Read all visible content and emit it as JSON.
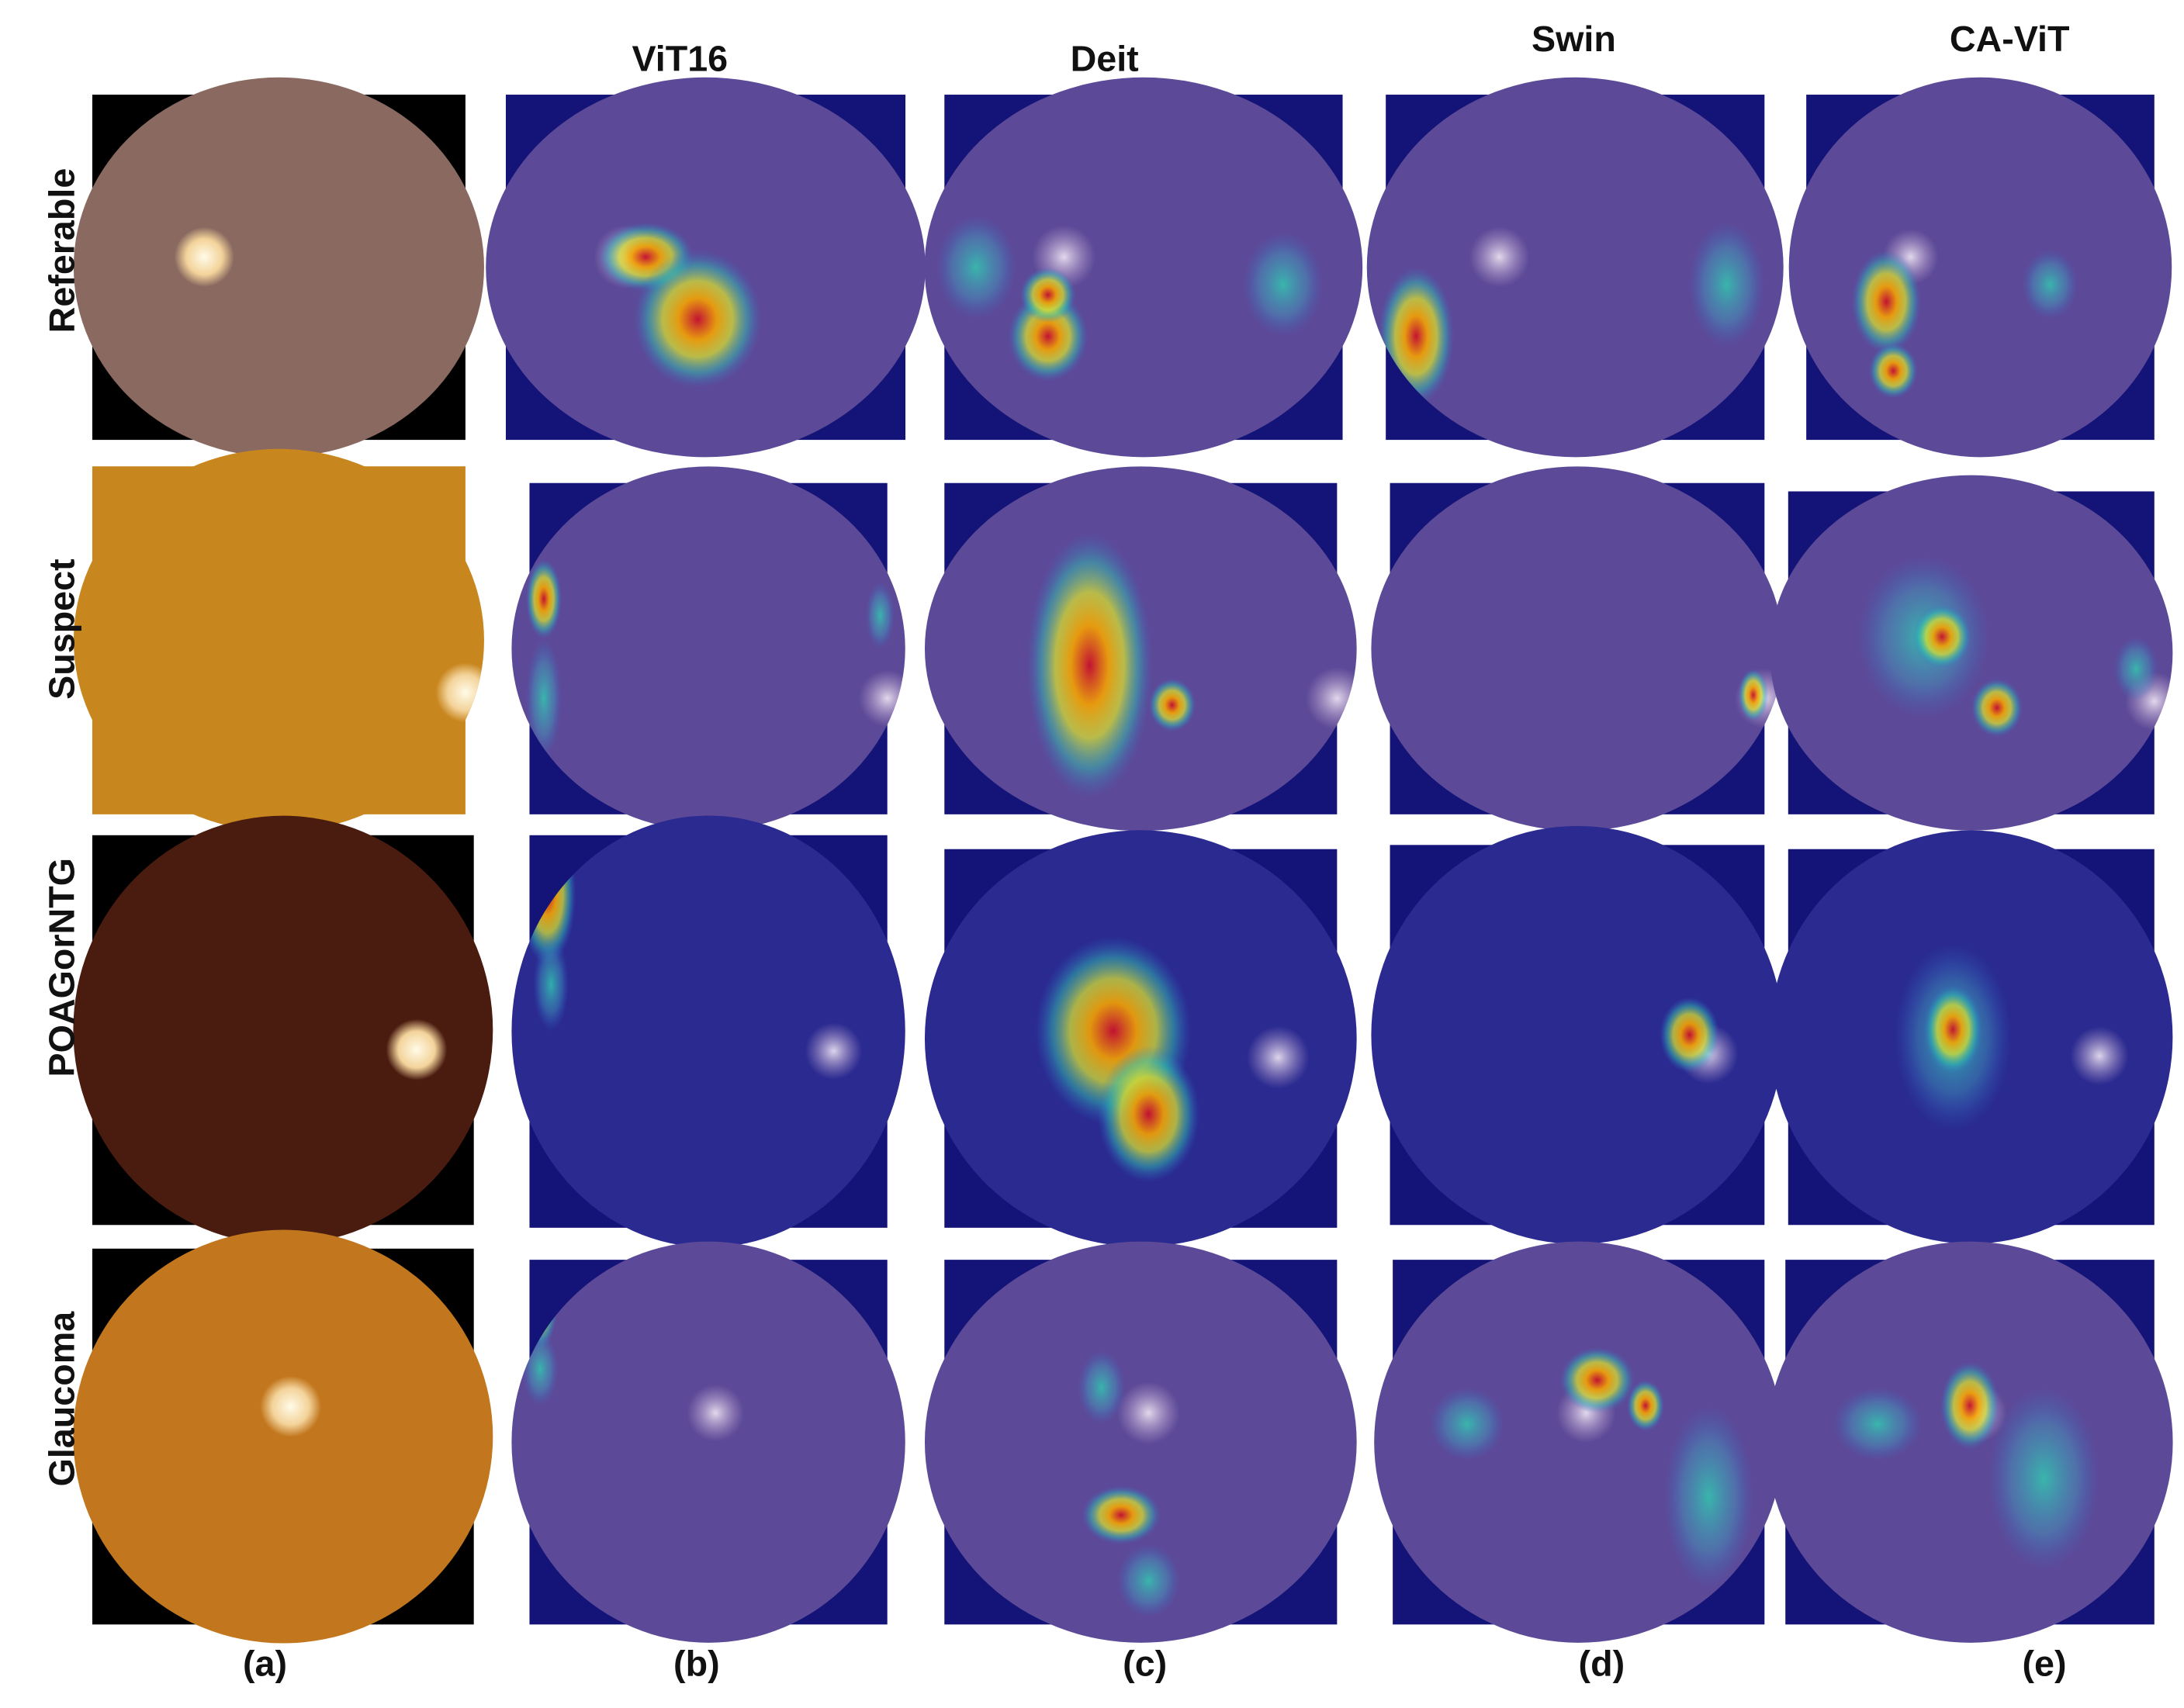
{
  "column_headers": [
    "ViT16",
    "Deit",
    "Swin",
    "CA-ViT"
  ],
  "row_labels": [
    "Referable",
    "Suspect",
    "POAGorNTG",
    "Glaucoma"
  ],
  "panel_labels": [
    "(a)",
    "(b)",
    "(c)",
    "(d)",
    "(e)"
  ]
}
